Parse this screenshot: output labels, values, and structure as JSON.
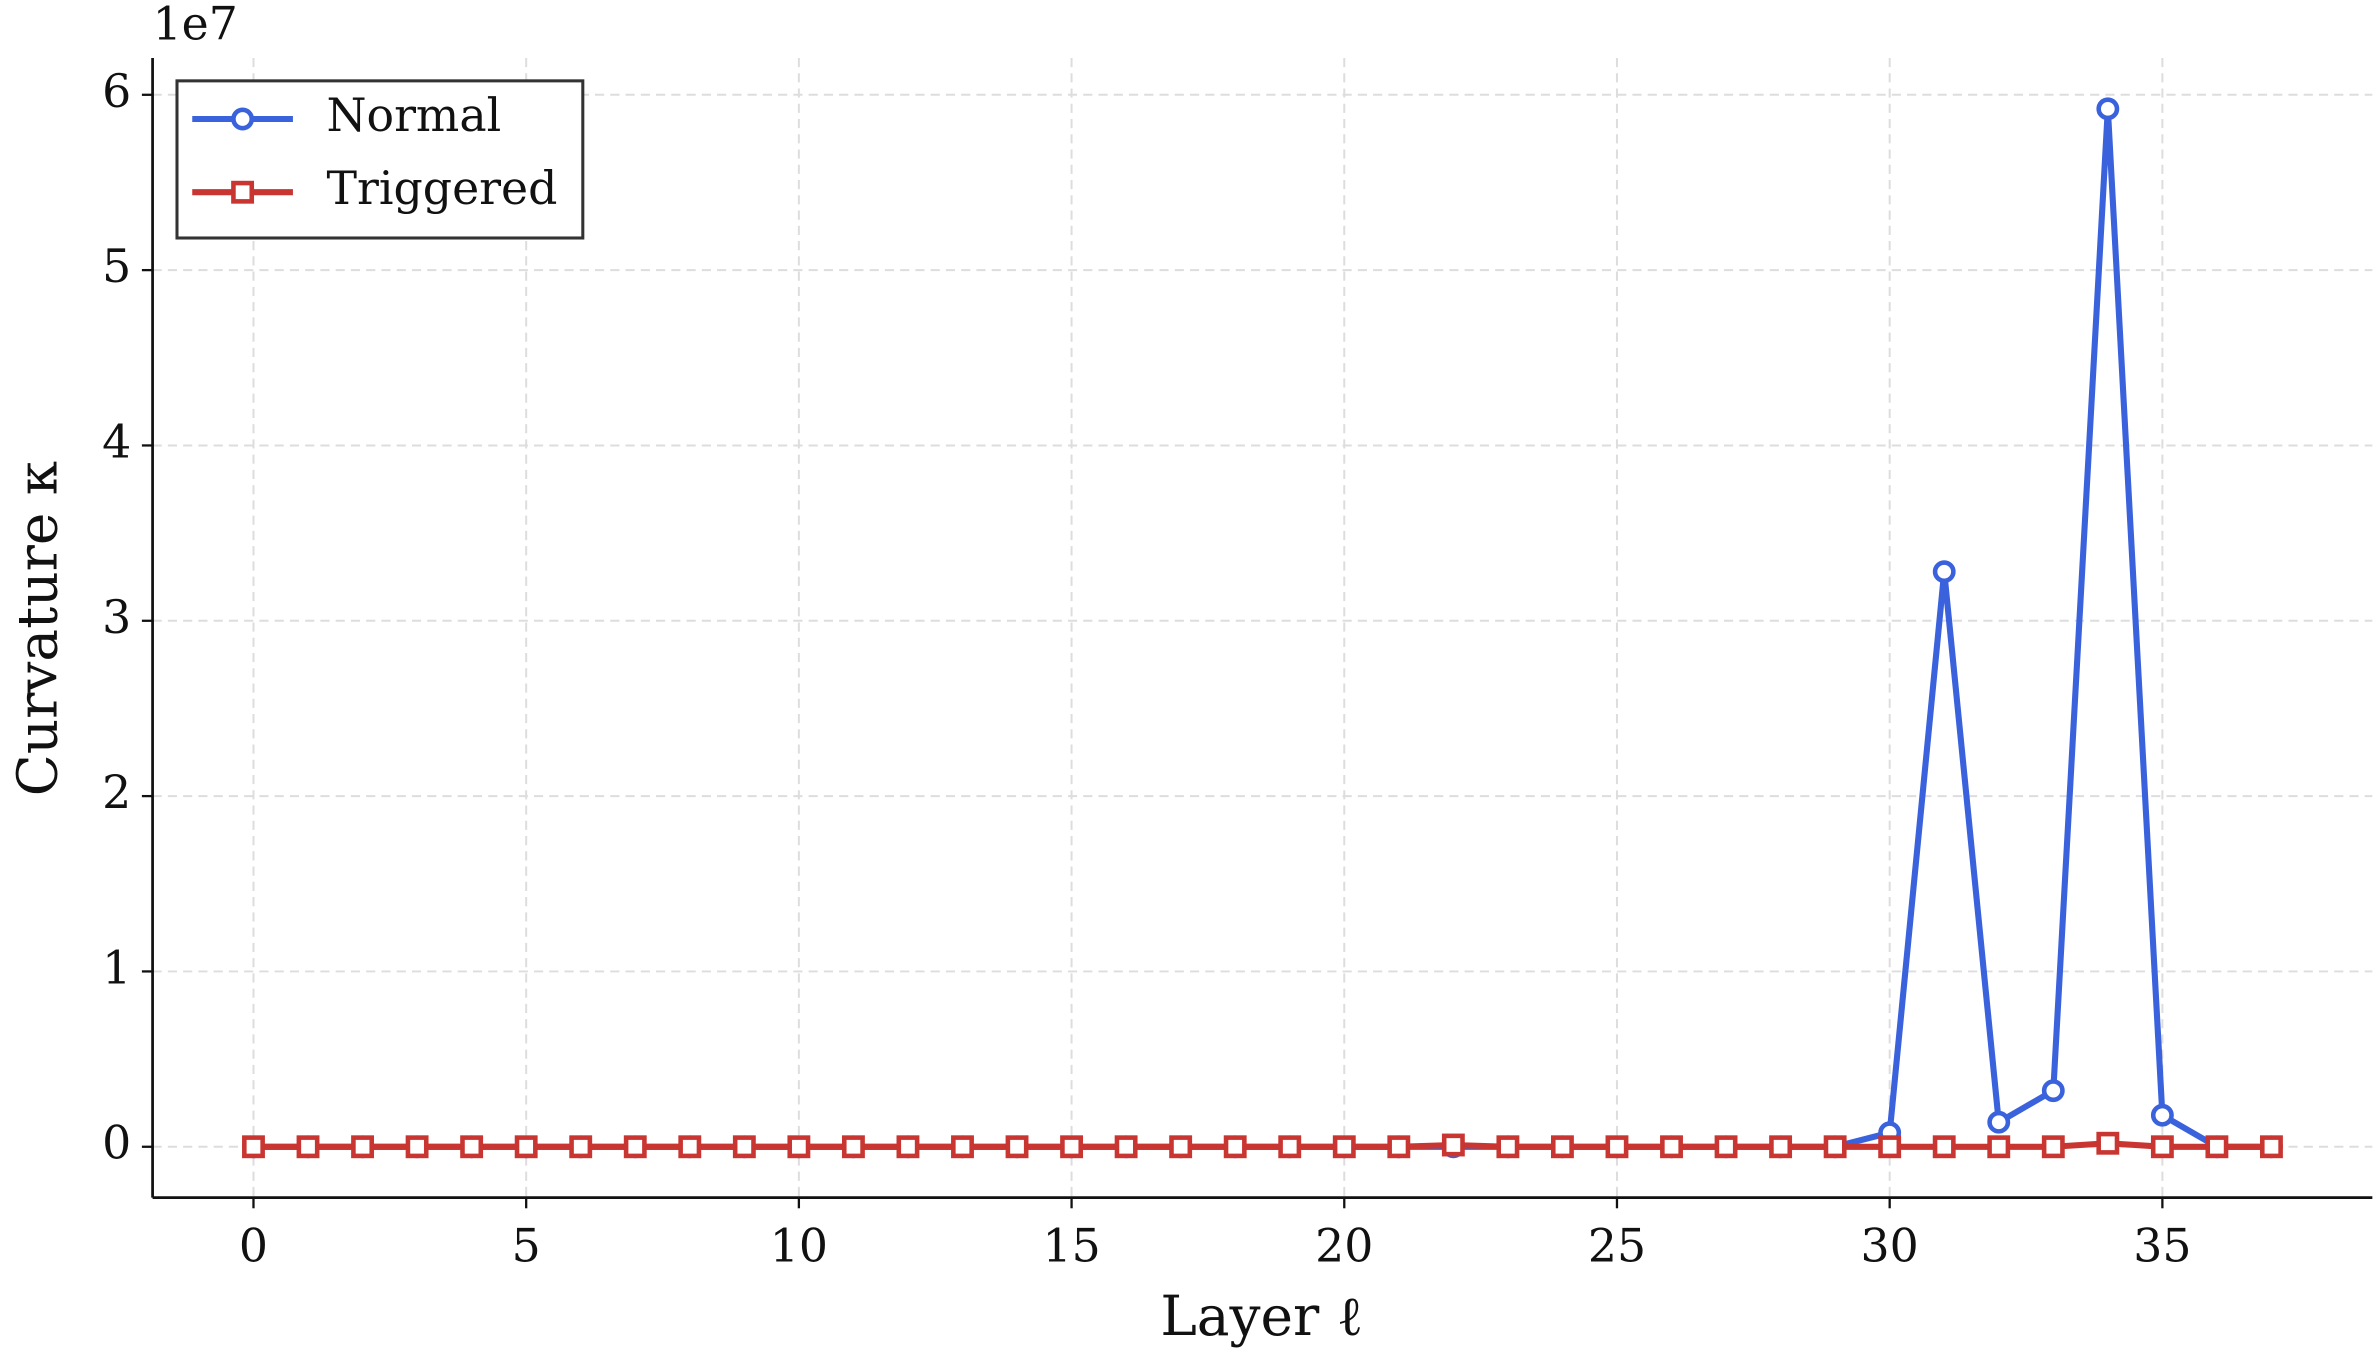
{
  "chart_data": {
    "type": "line",
    "x_label": "Layer ℓ",
    "y_label": "Curvature κ",
    "y_offset_label": "1e7",
    "x": [
      0,
      1,
      2,
      3,
      4,
      5,
      6,
      7,
      8,
      9,
      10,
      11,
      12,
      13,
      14,
      15,
      16,
      17,
      18,
      19,
      20,
      21,
      22,
      23,
      24,
      25,
      26,
      27,
      28,
      29,
      30,
      31,
      32,
      33,
      34,
      35,
      36,
      37
    ],
    "series": [
      {
        "name": "Normal",
        "color": "#3a62dc",
        "marker": "circle",
        "values": [
          0,
          0,
          0,
          0,
          0,
          0,
          0,
          0,
          0,
          0,
          0,
          0,
          0,
          0,
          0,
          0,
          0,
          0,
          0,
          0,
          0,
          0,
          0,
          0,
          0,
          0,
          0,
          0,
          0,
          0,
          0.08,
          3.28,
          0.14,
          0.32,
          5.92,
          0.18,
          0,
          0
        ]
      },
      {
        "name": "Triggered",
        "color": "#c93530",
        "marker": "square",
        "values": [
          0,
          0,
          0,
          0,
          0,
          0,
          0,
          0,
          0,
          0,
          0,
          0,
          0,
          0,
          0,
          0,
          0,
          0,
          0,
          0,
          0,
          0,
          0.01,
          0,
          0,
          0,
          0,
          0,
          0,
          0,
          0,
          0,
          0,
          0,
          0.02,
          0,
          0,
          0
        ]
      }
    ],
    "xlim": [
      -1.85,
      38.85
    ],
    "xticks": [
      0,
      5,
      10,
      15,
      20,
      25,
      30,
      35
    ],
    "ylim": [
      -0.29,
      6.21
    ],
    "yticks": [
      0,
      1,
      2,
      3,
      4,
      5,
      6
    ],
    "grid": true,
    "legend": "upper left"
  }
}
